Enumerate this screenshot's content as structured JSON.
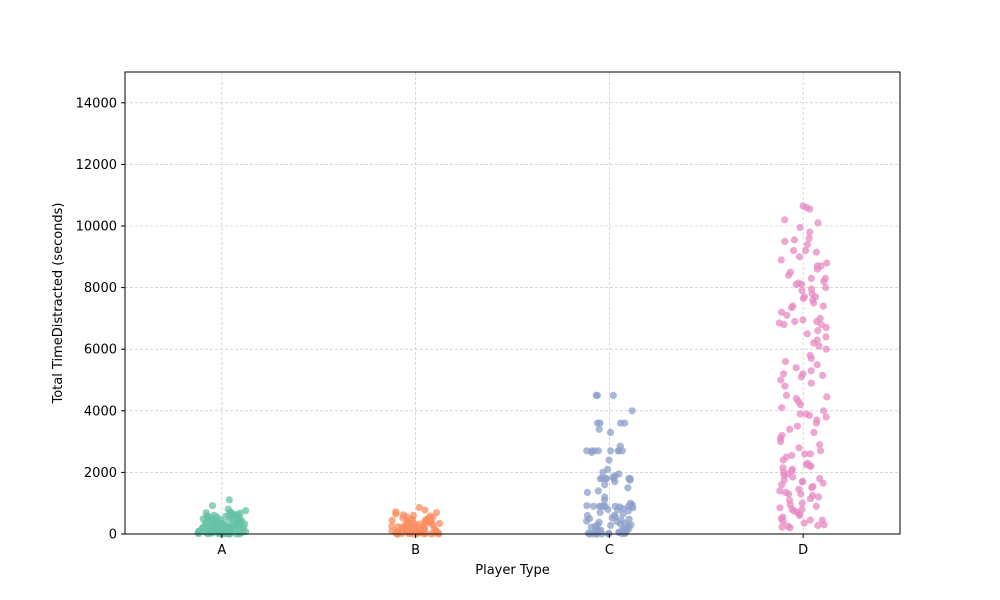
{
  "chart_data": {
    "type": "scatter",
    "xlabel": "Player Type",
    "ylabel": "Total TimeDistracted (seconds)",
    "ylim": [
      0,
      15000
    ],
    "yticks": [
      0,
      2000,
      4000,
      6000,
      8000,
      10000,
      12000,
      14000
    ],
    "categories": [
      "A",
      "B",
      "C",
      "D"
    ],
    "grid": true,
    "colors": {
      "A": "#66c2a5",
      "B": "#fc8d62",
      "C": "#8da0cb",
      "D": "#e78ac3"
    },
    "series": [
      {
        "category": "A",
        "values": [
          1110,
          920,
          810,
          760,
          720,
          700,
          690,
          680,
          660,
          640,
          630,
          610,
          600,
          590,
          570,
          560,
          540,
          520,
          510,
          500,
          490,
          470,
          460,
          450,
          440,
          430,
          420,
          410,
          400,
          390,
          380,
          370,
          360,
          350,
          340,
          330,
          320,
          310,
          300,
          290,
          280,
          270,
          260,
          250,
          240,
          230,
          220,
          210,
          200,
          190,
          180,
          170,
          160,
          150,
          140,
          130,
          120,
          110,
          100,
          90,
          80,
          70,
          60,
          50,
          40,
          30,
          20,
          10,
          5,
          0,
          350,
          420,
          260,
          180,
          90,
          60,
          30,
          15,
          480,
          520,
          300,
          220,
          140,
          70,
          40,
          20,
          10,
          0,
          610,
          550,
          330,
          270,
          190,
          110,
          75,
          45,
          25,
          12,
          0,
          0
        ]
      },
      {
        "category": "B",
        "values": [
          860,
          780,
          720,
          690,
          650,
          620,
          600,
          580,
          560,
          540,
          520,
          500,
          480,
          460,
          440,
          420,
          400,
          380,
          360,
          340,
          320,
          300,
          280,
          260,
          240,
          220,
          200,
          180,
          160,
          140,
          120,
          100,
          80,
          60,
          40,
          20,
          10,
          0,
          350,
          300,
          250,
          200,
          150,
          100,
          70,
          50,
          30,
          15,
          5,
          0,
          420,
          380,
          330,
          280,
          230,
          180,
          130,
          90,
          60,
          35,
          18,
          8,
          0,
          0,
          510,
          460,
          410,
          310,
          210,
          160,
          110,
          85,
          55,
          25,
          12,
          0
        ]
      },
      {
        "category": "C",
        "values": [
          4500,
          4500,
          4500,
          4000,
          3600,
          3600,
          3600,
          3600,
          3400,
          3300,
          2850,
          2700,
          2700,
          2700,
          2700,
          2700,
          2700,
          2700,
          2650,
          2400,
          2100,
          2000,
          1950,
          1900,
          1850,
          1800,
          1800,
          1800,
          1800,
          1800,
          1800,
          1750,
          1700,
          1600,
          1500,
          1400,
          1350,
          1200,
          1100,
          1000,
          950,
          920,
          900,
          900,
          900,
          900,
          900,
          900,
          880,
          850,
          820,
          800,
          780,
          750,
          700,
          650,
          600,
          560,
          520,
          500,
          480,
          450,
          420,
          400,
          380,
          350,
          320,
          300,
          280,
          260,
          240,
          220,
          200,
          180,
          160,
          140,
          120,
          100,
          80,
          60,
          50,
          40,
          30,
          20,
          10,
          0,
          0,
          0,
          0,
          0,
          5,
          15,
          25,
          900,
          900,
          1800,
          2700,
          600,
          300,
          150
        ]
      },
      {
        "category": "D",
        "values": [
          10650,
          10550,
          10600,
          10200,
          10100,
          9950,
          9800,
          9600,
          9550,
          9500,
          9400,
          9200,
          9150,
          9000,
          8900,
          8800,
          8700,
          8600,
          8500,
          8400,
          8300,
          8200,
          8150,
          8100,
          8000,
          7950,
          7900,
          7800,
          7700,
          7650,
          7600,
          7500,
          7400,
          7350,
          7200,
          7100,
          7000,
          6950,
          6900,
          6850,
          6800,
          6700,
          6600,
          6500,
          6400,
          6300,
          6200,
          6100,
          6000,
          5800,
          5700,
          5600,
          5500,
          5400,
          5300,
          5200,
          5150,
          5100,
          5000,
          4900,
          4800,
          4500,
          4450,
          4300,
          4200,
          4100,
          4000,
          3900,
          3850,
          3800,
          3700,
          3600,
          3500,
          3400,
          3300,
          3200,
          3100,
          2900,
          2800,
          2700,
          2600,
          2550,
          2500,
          2400,
          2300,
          2250,
          2200,
          2150,
          2100,
          2050,
          2000,
          1950,
          1900,
          1850,
          1800,
          1750,
          1700,
          1650,
          1600,
          1550,
          1500,
          1450,
          1400,
          1350,
          1300,
          1250,
          1200,
          1150,
          1100,
          1000,
          950,
          900,
          850,
          800,
          750,
          700,
          650,
          600,
          550,
          500,
          450,
          400,
          350,
          300,
          280,
          250,
          220,
          200,
          7400,
          6900,
          8100,
          8300,
          9200,
          5200,
          4400,
          2200,
          1700,
          1300,
          800,
          450,
          2600,
          3000,
          3900,
          6800,
          7700,
          8700
        ]
      }
    ]
  }
}
